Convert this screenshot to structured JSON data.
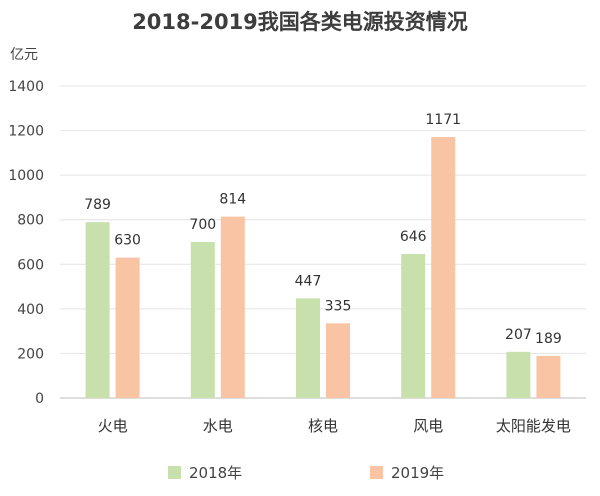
{
  "chart_data": {
    "type": "bar",
    "title": "2018-2019我国各类电源投资情况",
    "unit_label": "亿元",
    "categories": [
      "火电",
      "水电",
      "核电",
      "风电",
      "太阳能发电"
    ],
    "series": [
      {
        "name": "2018年",
        "values": [
          789,
          700,
          447,
          646,
          207
        ],
        "color": "#c7e0ac"
      },
      {
        "name": "2019年",
        "values": [
          630,
          814,
          335,
          1171,
          189
        ],
        "color": "#f8c4a4"
      }
    ],
    "ylim": [
      0,
      1400
    ],
    "yticks": [
      0,
      200,
      400,
      600,
      800,
      1000,
      1200,
      1400
    ],
    "grid": true,
    "legend_position": "bottom"
  }
}
